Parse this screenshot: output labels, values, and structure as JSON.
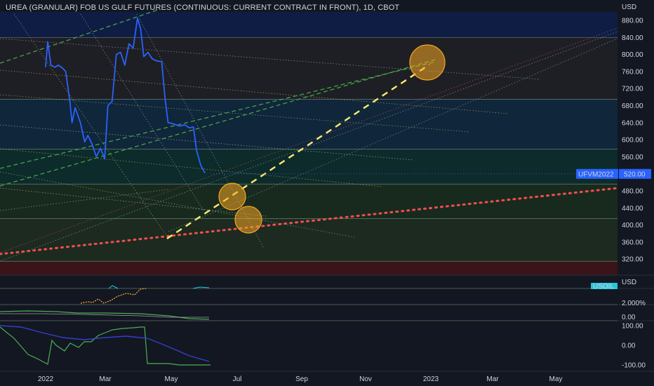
{
  "title": "UREA (GRANULAR) FOB US GULF FUTURES (CONTINUOUS: CURRENT CONTRACT IN FRONT), 1D, CBOT",
  "colors": {
    "background": "#131722",
    "price_line": "#2962ff",
    "yellow_trend": "#ffeb70",
    "red_trend": "#f04e4e",
    "green_channel": "#4caf50",
    "circle_fill": "#f5a623",
    "last_price_tag": "#2962ff"
  },
  "chart_data": [
    {
      "type": "line",
      "name": "main-price-pane",
      "currency_label": "USD",
      "ylim": [
        300,
        900
      ],
      "y_ticks": [
        "880.00",
        "840.00",
        "800.00",
        "760.00",
        "720.00",
        "680.00",
        "640.00",
        "600.00",
        "560.00",
        "520.00",
        "480.00",
        "440.00",
        "400.00",
        "360.00",
        "320.00"
      ],
      "x_ticks": [
        "2022",
        "Mar",
        "May",
        "Jul",
        "Sep",
        "Nov",
        "2023",
        "Mar",
        "May"
      ],
      "last_price_label": "UFVM2022",
      "last_price_value": "520.00",
      "series": [
        {
          "values": [
            {
              "x": "2022-01-01",
              "y": 770
            },
            {
              "x": "2022-01-03",
              "y": 830
            },
            {
              "x": "2022-01-06",
              "y": 775
            },
            {
              "x": "2022-01-10",
              "y": 770
            },
            {
              "x": "2022-01-13",
              "y": 775
            },
            {
              "x": "2022-01-17",
              "y": 768
            },
            {
              "x": "2022-01-20",
              "y": 760
            },
            {
              "x": "2022-01-24",
              "y": 690
            },
            {
              "x": "2022-01-26",
              "y": 640
            },
            {
              "x": "2022-01-29",
              "y": 675
            },
            {
              "x": "2022-02-03",
              "y": 640
            },
            {
              "x": "2022-02-07",
              "y": 595
            },
            {
              "x": "2022-02-10",
              "y": 610
            },
            {
              "x": "2022-02-14",
              "y": 590
            },
            {
              "x": "2022-02-18",
              "y": 560
            },
            {
              "x": "2022-02-22",
              "y": 580
            },
            {
              "x": "2022-02-26",
              "y": 555
            },
            {
              "x": "2022-03-01",
              "y": 680
            },
            {
              "x": "2022-03-05",
              "y": 690
            },
            {
              "x": "2022-03-09",
              "y": 800
            },
            {
              "x": "2022-03-13",
              "y": 805
            },
            {
              "x": "2022-03-17",
              "y": 775
            },
            {
              "x": "2022-03-21",
              "y": 825
            },
            {
              "x": "2022-03-25",
              "y": 815
            },
            {
              "x": "2022-03-29",
              "y": 885
            },
            {
              "x": "2022-04-01",
              "y": 860
            },
            {
              "x": "2022-04-04",
              "y": 795
            },
            {
              "x": "2022-04-08",
              "y": 805
            },
            {
              "x": "2022-04-12",
              "y": 790
            },
            {
              "x": "2022-04-16",
              "y": 785
            },
            {
              "x": "2022-04-21",
              "y": 783
            },
            {
              "x": "2022-04-24",
              "y": 700
            },
            {
              "x": "2022-04-27",
              "y": 640
            },
            {
              "x": "2022-05-01",
              "y": 638
            },
            {
              "x": "2022-05-08",
              "y": 632
            },
            {
              "x": "2022-05-13",
              "y": 635
            },
            {
              "x": "2022-05-17",
              "y": 628
            },
            {
              "x": "2022-05-21",
              "y": 630
            },
            {
              "x": "2022-05-24",
              "y": 575
            },
            {
              "x": "2022-05-28",
              "y": 540
            },
            {
              "x": "2022-06-01",
              "y": 522
            }
          ]
        }
      ]
    },
    {
      "type": "line",
      "name": "indicator-pane-1",
      "currency_label": "USD",
      "badge": "USOIL"
    },
    {
      "type": "line",
      "name": "indicator-pane-2",
      "y_ticks": [
        "2.000%"
      ]
    },
    {
      "type": "line",
      "name": "indicator-pane-3",
      "y_ticks": [
        "0.00"
      ]
    },
    {
      "type": "line",
      "name": "indicator-pane-4",
      "ylim": [
        -100,
        100
      ],
      "y_ticks": [
        "100.00",
        "0.00",
        "-100.00"
      ]
    }
  ]
}
